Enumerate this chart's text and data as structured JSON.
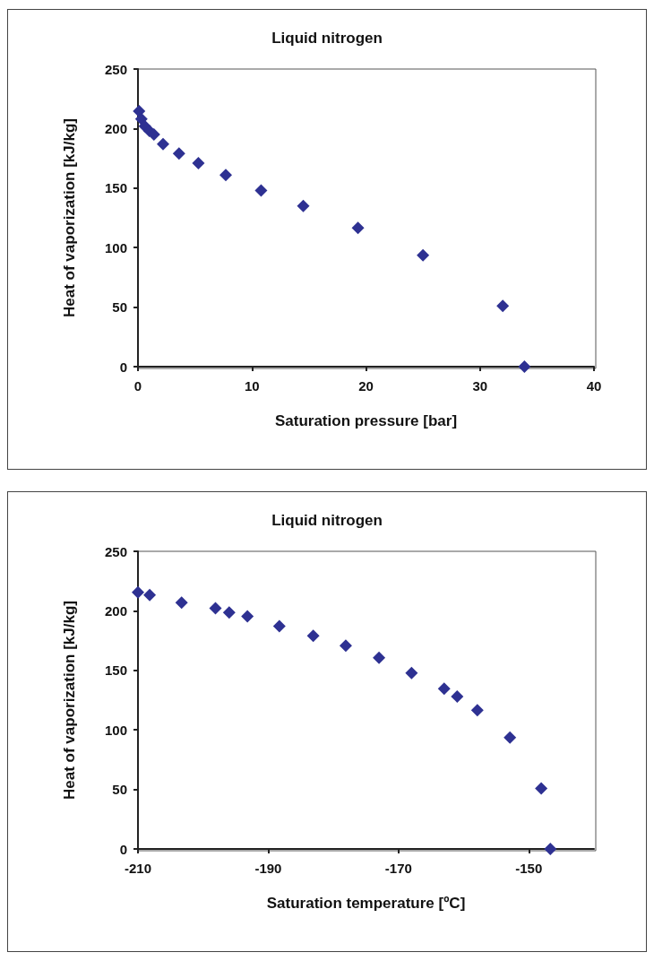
{
  "chart_data": [
    {
      "type": "scatter",
      "title": "Liquid nitrogen",
      "xlabel": "Saturation pressure [bar]",
      "ylabel": "Heat of vaporization [kJ/kg]",
      "marker": "diamond",
      "grid": false,
      "x": [
        0.1,
        0.3,
        0.6,
        1.0,
        1.4,
        2.2,
        3.6,
        5.3,
        7.7,
        10.8,
        14.5,
        19.3,
        25.0,
        32.0,
        33.9
      ],
      "series": [
        {
          "color": "#2e3192",
          "values": [
            214.7,
            208,
            202,
            198,
            195,
            187,
            179,
            171,
            161,
            148,
            135,
            116.5,
            93.6,
            51,
            0
          ]
        }
      ],
      "xlim": [
        0,
        40
      ],
      "xticks": [
        0,
        10,
        20,
        30,
        40
      ],
      "ylim": [
        0,
        250
      ],
      "yticks": [
        0,
        50,
        100,
        150,
        200,
        250
      ]
    },
    {
      "type": "scatter",
      "title": "Liquid nitrogen",
      "xlabel": "Saturation temperature [ºC]",
      "ylabel": "Heat of vaporization [kJ/kg]",
      "marker": "diamond",
      "grid": false,
      "x": [
        -210.0,
        -208.2,
        -203.3,
        -198.1,
        -196.0,
        -193.2,
        -188.3,
        -183.1,
        -178.1,
        -173.0,
        -168.0,
        -163.0,
        -161.0,
        -157.9,
        -152.9,
        -148.1,
        -146.7
      ],
      "series": [
        {
          "color": "#2e3192",
          "values": [
            215.6,
            213.3,
            206.9,
            202.2,
            198.6,
            195.5,
            187.2,
            179.0,
            170.7,
            160.6,
            147.7,
            134.6,
            128.1,
            116.5,
            93.5,
            50.9,
            0
          ]
        }
      ],
      "xlim": [
        -210,
        -140
      ],
      "xticks": [
        -210,
        -190,
        -170,
        -150
      ],
      "ylim": [
        0,
        250
      ],
      "yticks": [
        0,
        50,
        100,
        150,
        200,
        250
      ]
    }
  ]
}
